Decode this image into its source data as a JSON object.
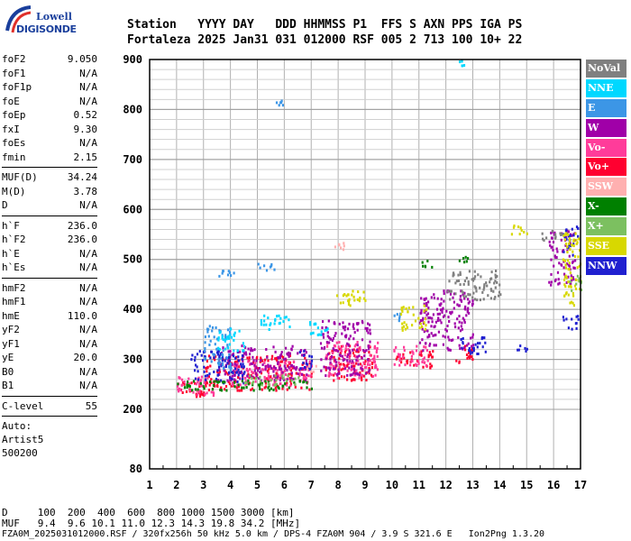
{
  "logo": {
    "line1": "Lowell",
    "line2": "DIGISONDE"
  },
  "header": {
    "row1": "Station   YYYY DAY   DDD HHMMSS P1  FFS S AXN PPS IGA PS",
    "row2": "Fortaleza 2025 Jan31 031 012000 RSF 005 2 713 100 10+ 22"
  },
  "params": {
    "group1": [
      {
        "k": "foF2",
        "v": "9.050"
      },
      {
        "k": "foF1",
        "v": "N/A"
      },
      {
        "k": "foF1p",
        "v": "N/A"
      },
      {
        "k": "foE",
        "v": "N/A"
      },
      {
        "k": "foEp",
        "v": "0.52"
      },
      {
        "k": "fxI",
        "v": "9.30"
      },
      {
        "k": "foEs",
        "v": "N/A"
      },
      {
        "k": "fmin",
        "v": "2.15"
      }
    ],
    "group2": [
      {
        "k": "MUF(D)",
        "v": "34.24"
      },
      {
        "k": "M(D)",
        "v": "3.78"
      },
      {
        "k": "D",
        "v": "N/A"
      }
    ],
    "group3": [
      {
        "k": "h`F",
        "v": "236.0"
      },
      {
        "k": "h`F2",
        "v": "236.0"
      },
      {
        "k": "h`E",
        "v": "N/A"
      },
      {
        "k": "h`Es",
        "v": "N/A"
      }
    ],
    "group4": [
      {
        "k": "hmF2",
        "v": "N/A"
      },
      {
        "k": "hmF1",
        "v": "N/A"
      },
      {
        "k": "hmE",
        "v": "110.0"
      },
      {
        "k": "yF2",
        "v": "N/A"
      },
      {
        "k": "yF1",
        "v": "N/A"
      },
      {
        "k": "yE",
        "v": "20.0"
      },
      {
        "k": "B0",
        "v": "N/A"
      },
      {
        "k": "B1",
        "v": "N/A"
      }
    ],
    "group5": [
      {
        "k": "C-level",
        "v": "55"
      }
    ],
    "auto": [
      "Auto:",
      "Artist5",
      "500200"
    ]
  },
  "legend": [
    {
      "label": "NoVal",
      "color": "#808080"
    },
    {
      "label": "NNE",
      "color": "#00d8ff"
    },
    {
      "label": "E",
      "color": "#3c96e6"
    },
    {
      "label": "W",
      "color": "#a000a8"
    },
    {
      "label": "Vo-",
      "color": "#ff3c9a"
    },
    {
      "label": "Vo+",
      "color": "#ff0030"
    },
    {
      "label": "SSW",
      "color": "#ffb0b0"
    },
    {
      "label": "X-",
      "color": "#008000"
    },
    {
      "label": "X+",
      "color": "#7cc060"
    },
    {
      "label": "SSE",
      "color": "#d8d800"
    },
    {
      "label": "NNW",
      "color": "#2020d0"
    }
  ],
  "bottom": {
    "line1": "D     100  200  400  600  800 1000 1500 3000 [km]",
    "line2": "MUF   9.4  9.6 10.1 11.0 12.3 14.3 19.8 34.2 [MHz]",
    "line3": "FZA0M_2025031012000.RSF / 320fx256h 50 kHz 5.0 km / DPS-4 FZA0M 904 / 3.9 S 321.6 E   Ion2Png 1.3.20"
  },
  "chart_data": {
    "type": "scatter",
    "title": "",
    "xlabel": "",
    "ylabel": "",
    "xlim": [
      1,
      17
    ],
    "ylim": [
      80,
      900
    ],
    "x_ticks": [
      1,
      2,
      3,
      4,
      5,
      6,
      7,
      8,
      9,
      10,
      11,
      12,
      13,
      14,
      15,
      16,
      17
    ],
    "y_ticks": [
      80,
      200,
      300,
      400,
      500,
      600,
      700,
      800,
      900
    ],
    "grid": true,
    "legend_position": "right",
    "series": [
      {
        "name": "Vo+",
        "color": "#ff0030",
        "clusters": [
          [
            2.0,
            3.2,
            225,
            260
          ],
          [
            3.0,
            7.0,
            240,
            310
          ],
          [
            7.5,
            9.3,
            260,
            330
          ],
          [
            10.0,
            11.5,
            285,
            320
          ],
          [
            12.3,
            13.0,
            295,
            330
          ]
        ]
      },
      {
        "name": "Vo-",
        "color": "#ff3c9a",
        "clusters": [
          [
            2.0,
            3.5,
            230,
            270
          ],
          [
            4.0,
            7.0,
            250,
            300
          ],
          [
            7.5,
            9.5,
            265,
            340
          ],
          [
            10.0,
            11.4,
            290,
            330
          ]
        ]
      },
      {
        "name": "W",
        "color": "#a000a8",
        "clusters": [
          [
            3.5,
            6.8,
            260,
            330
          ],
          [
            7.3,
            9.2,
            270,
            380
          ],
          [
            11.0,
            13.0,
            320,
            440
          ],
          [
            15.8,
            16.8,
            450,
            560
          ]
        ]
      },
      {
        "name": "NNW",
        "color": "#2020d0",
        "clusters": [
          [
            2.5,
            4.5,
            255,
            320
          ],
          [
            6.5,
            7.0,
            280,
            330
          ],
          [
            12.5,
            13.5,
            310,
            350
          ],
          [
            14.5,
            15.0,
            315,
            330
          ],
          [
            16.3,
            16.9,
            360,
            390
          ],
          [
            16.3,
            16.9,
            510,
            570
          ]
        ]
      },
      {
        "name": "E",
        "color": "#3c96e6",
        "clusters": [
          [
            3.0,
            4.0,
            280,
            370
          ],
          [
            3.5,
            4.2,
            460,
            480
          ],
          [
            4.8,
            5.6,
            480,
            495
          ],
          [
            5.6,
            6.0,
            810,
            820
          ],
          [
            10.0,
            10.4,
            375,
            395
          ]
        ]
      },
      {
        "name": "NNE",
        "color": "#00d8ff",
        "clusters": [
          [
            3.5,
            4.5,
            320,
            370
          ],
          [
            5.0,
            6.2,
            360,
            390
          ],
          [
            6.8,
            7.6,
            350,
            380
          ],
          [
            12.4,
            12.7,
            890,
            900
          ]
        ]
      },
      {
        "name": "SSE",
        "color": "#d8d800",
        "clusters": [
          [
            7.8,
            9.0,
            410,
            440
          ],
          [
            10.3,
            11.3,
            360,
            410
          ],
          [
            14.3,
            15.0,
            550,
            570
          ],
          [
            16.3,
            17.0,
            410,
            560
          ]
        ]
      },
      {
        "name": "X-",
        "color": "#008000",
        "clusters": [
          [
            2.0,
            7.0,
            240,
            260
          ],
          [
            11.0,
            11.5,
            485,
            500
          ],
          [
            12.4,
            12.8,
            495,
            510
          ]
        ]
      },
      {
        "name": "X+",
        "color": "#7cc060",
        "clusters": [
          [
            4.5,
            6.5,
            250,
            270
          ],
          [
            16.5,
            17.0,
            440,
            470
          ]
        ]
      },
      {
        "name": "SSW",
        "color": "#ffb0b0",
        "clusters": [
          [
            7.8,
            8.5,
            520,
            535
          ],
          [
            6.8,
            7.2,
            275,
            290
          ]
        ]
      },
      {
        "name": "NoVal",
        "color": "#808080",
        "clusters": [
          [
            15.5,
            16.3,
            540,
            560
          ],
          [
            12.0,
            14.0,
            420,
            480
          ]
        ]
      }
    ]
  }
}
